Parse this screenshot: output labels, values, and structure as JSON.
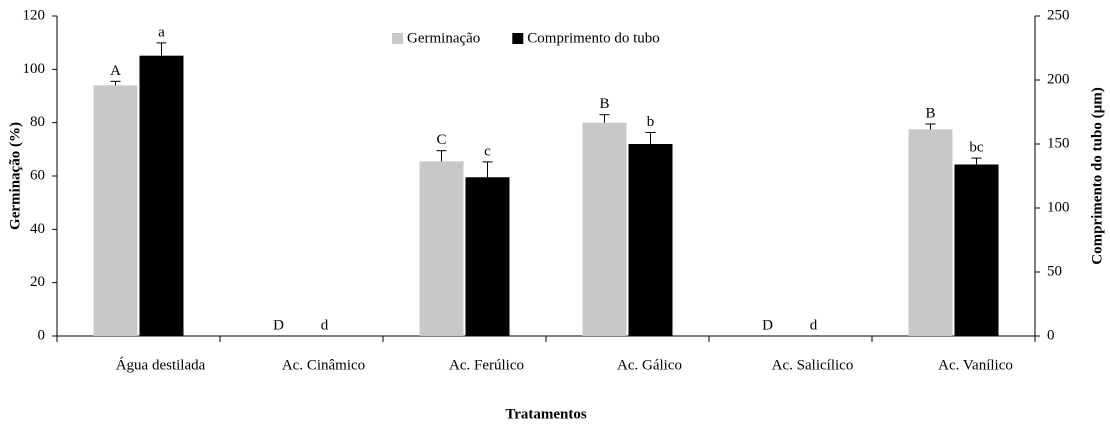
{
  "chart_data": {
    "type": "bar",
    "categories": [
      "Água destilada",
      "Ac. Cinâmico",
      "Ac. Ferúlico",
      "Ac. Gálico",
      "Ac. Salicílico",
      "Ac. Vanílico"
    ],
    "series": [
      {
        "name": "Germinação",
        "color": "#c8c8c8",
        "values": [
          94,
          0,
          65.5,
          80,
          0,
          77.5
        ],
        "errors": [
          1.5,
          0,
          4,
          3,
          0,
          2
        ],
        "annotations": [
          "A",
          "D",
          "C",
          "B",
          "D",
          "B"
        ]
      },
      {
        "name": "Comprimento do tubo",
        "color": "#000000",
        "axis": "y2",
        "values": [
          219,
          0,
          124,
          150,
          0,
          134
        ],
        "errors": [
          10,
          0,
          12,
          9,
          0,
          5
        ],
        "annotations": [
          "a",
          "d",
          "c",
          "b",
          "d",
          "bc"
        ]
      }
    ],
    "ylabel": "Germinação (%)",
    "y2label": "Comprimento do tubo (µm)",
    "xlabel": "Tratamentos",
    "ylim": [
      0,
      120
    ],
    "yticks": [
      0,
      20,
      40,
      60,
      80,
      100,
      120
    ],
    "y2lim": [
      0,
      250
    ],
    "y2ticks": [
      0,
      50,
      100,
      150,
      200,
      250
    ],
    "grid": false,
    "legend": "top"
  }
}
